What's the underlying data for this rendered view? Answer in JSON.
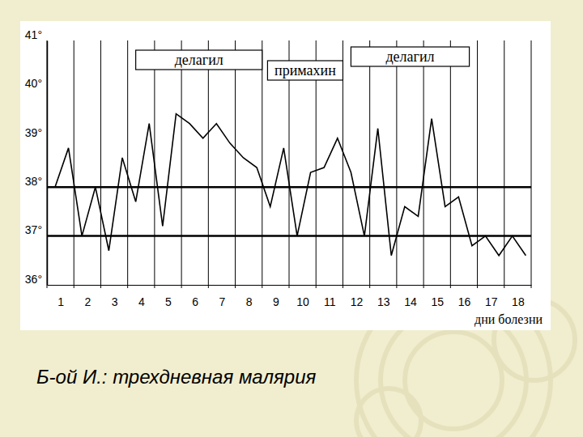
{
  "chart_data": {
    "type": "line",
    "title": "Б-ой И.: трехдневная малярия",
    "x_label": "дни болезни",
    "x": [
      0.8,
      1.3,
      1.8,
      2.3,
      2.8,
      3.3,
      3.8,
      4.3,
      4.8,
      5.3,
      5.8,
      6.3,
      6.8,
      7.3,
      7.8,
      8.3,
      8.8,
      9.3,
      9.8,
      10.3,
      10.8,
      11.3,
      11.8,
      12.3,
      12.8,
      13.3,
      13.8,
      14.3,
      14.8,
      15.3,
      15.8,
      16.3,
      16.8,
      17.3,
      17.8,
      18.3
    ],
    "values": [
      38.0,
      38.8,
      37.0,
      38.0,
      36.7,
      38.6,
      37.7,
      39.3,
      37.2,
      39.5,
      39.3,
      39.0,
      39.3,
      38.9,
      38.6,
      38.4,
      37.6,
      38.8,
      37.0,
      38.3,
      38.4,
      39.0,
      38.3,
      37.0,
      39.2,
      36.6,
      37.6,
      37.4,
      39.4,
      37.6,
      37.8,
      36.8,
      37.0,
      36.6,
      37.0,
      36.6
    ],
    "color": "#000000",
    "xlim": [
      0.5,
      18.5
    ],
    "xticks": [
      1,
      2,
      3,
      4,
      5,
      6,
      7,
      8,
      9,
      10,
      11,
      12,
      13,
      14,
      15,
      16,
      17,
      18
    ],
    "ylim": [
      36,
      41
    ],
    "yticks": [
      {
        "value": 36,
        "label": "36°"
      },
      {
        "value": 37,
        "label": "37°"
      },
      {
        "value": 38,
        "label": "38°"
      },
      {
        "value": 39,
        "label": "39°"
      },
      {
        "value": 40,
        "label": "40°"
      },
      {
        "value": 41,
        "label": "41°"
      }
    ],
    "reference_lines": [
      37,
      38
    ],
    "annotations": [
      {
        "text": "делагил",
        "x_range": [
          3.8,
          8.5
        ]
      },
      {
        "text": "примахин",
        "x_range": [
          8.7,
          11.5
        ]
      },
      {
        "text": "делагил",
        "x_range": [
          11.8,
          16.2
        ]
      }
    ],
    "grid": true
  }
}
